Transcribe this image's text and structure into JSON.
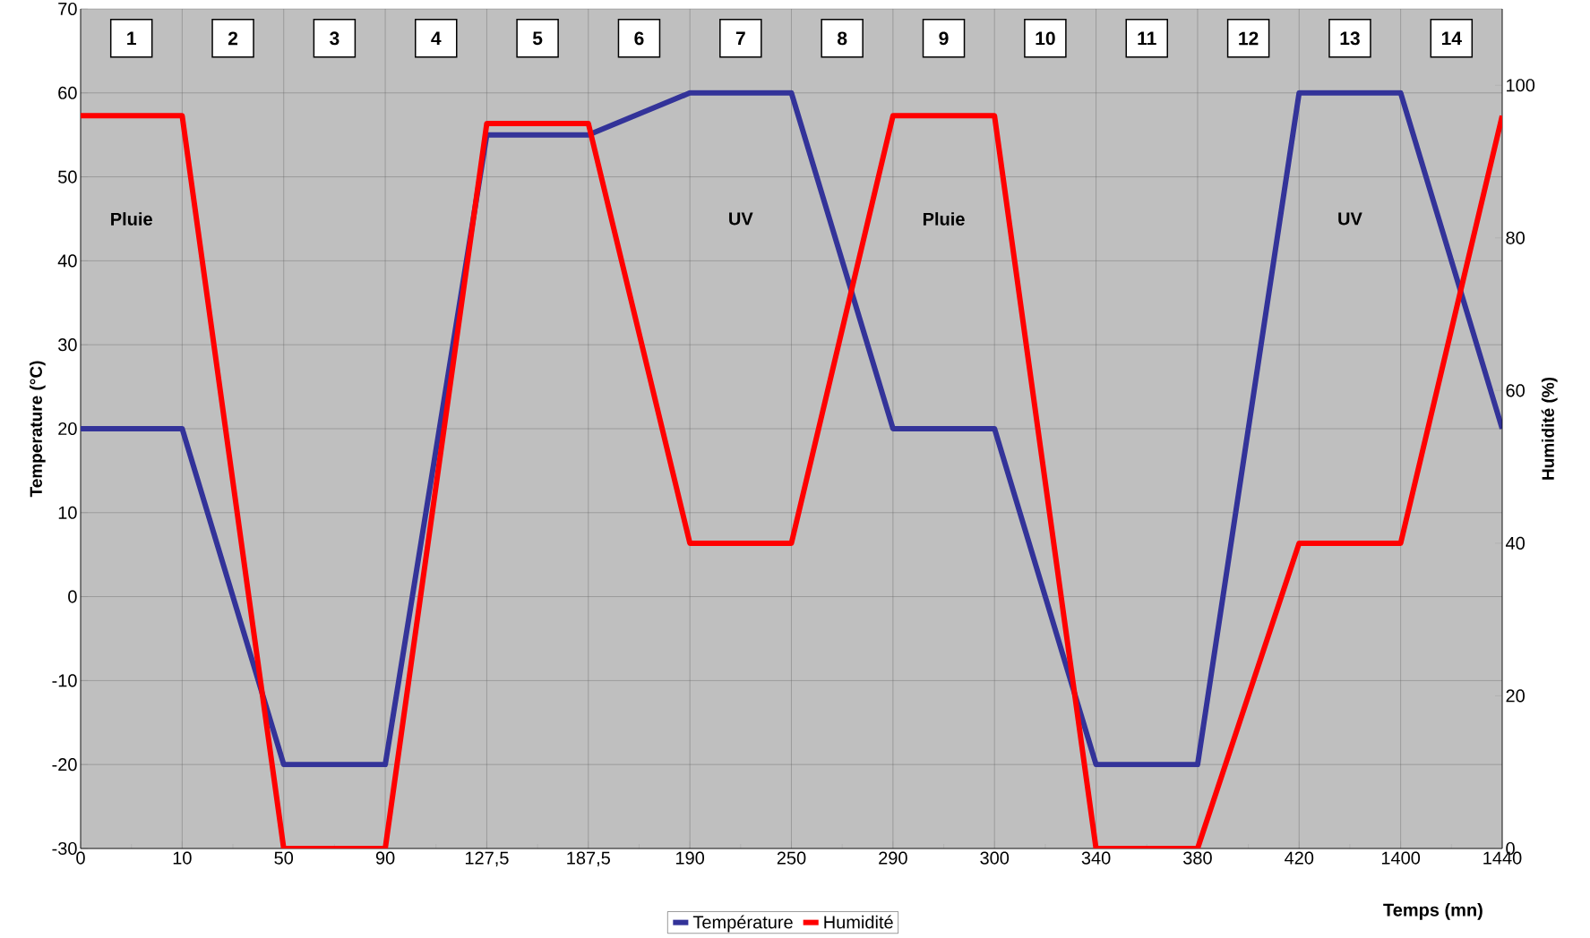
{
  "chart_data": {
    "type": "line",
    "xlabel": "Temps (mn)",
    "ylabel": "Temperature (°C)",
    "y2label": "Humidité (%)",
    "categories": [
      "0",
      "10",
      "50",
      "90",
      "127,5",
      "187,5",
      "190",
      "250",
      "290",
      "300",
      "340",
      "380",
      "420",
      "1400",
      "1440"
    ],
    "series": [
      {
        "name": "Température",
        "color": "#333399",
        "values": [
          20,
          20,
          -20,
          -20,
          55,
          55,
          60,
          60,
          20,
          20,
          -20,
          -20,
          60,
          60,
          20
        ]
      },
      {
        "name": "Humidité",
        "color": "#ff0000",
        "axis": "y2",
        "values": [
          96,
          96,
          0,
          0,
          95,
          95,
          40,
          40,
          96,
          96,
          0,
          0,
          40,
          40,
          96
        ]
      }
    ],
    "ylim": [
      -30,
      70
    ],
    "yticks": [
      -30,
      -20,
      -10,
      0,
      10,
      20,
      30,
      40,
      50,
      60,
      70
    ],
    "y2lim": [
      0,
      110
    ],
    "y2ticks": [
      0,
      20,
      40,
      60,
      80,
      100
    ],
    "grid": true,
    "legend": "bottom",
    "line_style": "solid",
    "marker": "none",
    "annotations": [
      "1",
      "2",
      "3",
      "4",
      "5",
      "6",
      "7",
      "8",
      "9",
      "10",
      "11",
      "12",
      "13",
      "14",
      "Pluie",
      "UV",
      "Pluie",
      "UV"
    ]
  }
}
